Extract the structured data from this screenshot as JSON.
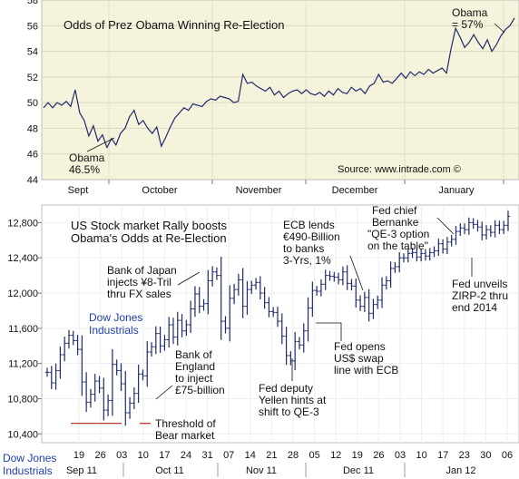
{
  "chart_data": [
    {
      "type": "line",
      "title": "Odds of Prez Obama Winning Re-Election",
      "source": "Source: www.intrade.com ©",
      "ylim": [
        44,
        58
      ],
      "yticks": [
        "44",
        "46",
        "48",
        "50",
        "52",
        "54",
        "56",
        "58"
      ],
      "months": [
        "Sept",
        "October",
        "November",
        "December",
        "January"
      ],
      "grid": true,
      "annotations": {
        "start": "Obama",
        "start_value": "46.5%",
        "end": "Obama",
        "end_value": "= 57%"
      },
      "series": [
        {
          "color": "#1f2a6b",
          "values": [
            49.6,
            50.0,
            49.6,
            50.0,
            49.8,
            50.1,
            49.7,
            51.0,
            49.2,
            48.6,
            47.4,
            48.2,
            47.0,
            47.5,
            46.5,
            47.2,
            46.7,
            47.6,
            48.0,
            48.9,
            49.4,
            48.3,
            48.6,
            48.0,
            47.6,
            48.1,
            46.6,
            47.3,
            48.1,
            48.8,
            49.2,
            49.6,
            49.4,
            49.9,
            49.8,
            49.7,
            50.1,
            50.3,
            50.2,
            50.5,
            50.4,
            50.3,
            50.0,
            50.1,
            52.2,
            51.5,
            51.6,
            51.3,
            51.1,
            50.9,
            51.2,
            50.6,
            50.9,
            50.4,
            50.7,
            50.9,
            51.0,
            50.7,
            51.0,
            50.7,
            50.6,
            50.8,
            50.5,
            50.9,
            50.6,
            51.1,
            50.8,
            50.7,
            51.2,
            50.9,
            51.1,
            50.7,
            51.3,
            51.5,
            52.2,
            51.6,
            51.7,
            51.5,
            51.9,
            52.3,
            51.9,
            52.4,
            52.1,
            52.4,
            52.2,
            52.6,
            52.3,
            52.5,
            52.7,
            52.3,
            54.2,
            55.8,
            55.1,
            54.3,
            54.7,
            55.3,
            54.7,
            54.2,
            54.9,
            54.0,
            54.5,
            55.2,
            55.7,
            56.0,
            56.6
          ]
        }
      ]
    },
    {
      "type": "ohlc",
      "title": "US Stock market Rally boosts Obama's Odds at Re-Election",
      "series_label": "Dow Jones Industrials",
      "ylim": [
        10300,
        13000
      ],
      "yticks": [
        "10,400",
        "10,800",
        "11,200",
        "11,600",
        "12,000",
        "12,400",
        "12,800"
      ],
      "x_day_labels": [
        "19",
        "26",
        "03",
        "10",
        "17",
        "24",
        "31",
        "07",
        "14",
        "21",
        "28",
        "05",
        "12",
        "19",
        "26",
        "03",
        "10",
        "17",
        "23",
        "30",
        "06"
      ],
      "x_month_labels": [
        "Sep 11",
        "Oct 11",
        "Nov 11",
        "Dec 11",
        "Jan 12"
      ],
      "x_axis_label": "Dow Jones Industrials",
      "threshold": {
        "value": 10520,
        "label": "Threshold of Bear market"
      },
      "annotations": [
        {
          "id": "boj",
          "text": "Bank of Japan injects ¥8-Tril thru FX sales"
        },
        {
          "id": "boe",
          "text": "Bank of England to inject £75-billion"
        },
        {
          "id": "yellen",
          "text": "Fed deputy Yellen hints at shift to QE-3"
        },
        {
          "id": "ecb",
          "text": "ECB lends €490-Billion to banks 3-Yrs, 1%"
        },
        {
          "id": "swap",
          "text": "Fed opens US$ swap line with ECB"
        },
        {
          "id": "bernanke",
          "text": "Fed chief Bernanke \"QE-3 option on the table\""
        },
        {
          "id": "zirp",
          "text": "Fed unveils ZIRP-2 thru end 2014"
        }
      ],
      "closes": [
        11100,
        10980,
        11120,
        11300,
        11430,
        11520,
        11460,
        11360,
        10990,
        10760,
        10850,
        11000,
        10920,
        10670,
        10780,
        11190,
        11120,
        10970,
        10640,
        10750,
        10860,
        11080,
        11060,
        11330,
        11390,
        11540,
        11400,
        11470,
        11640,
        11500,
        11690,
        11570,
        11640,
        11820,
        11990,
        11850,
        11880,
        12140,
        12240,
        12200,
        11680,
        11600,
        11940,
        12040,
        12150,
        11850,
        12040,
        12090,
        12120,
        12000,
        11890,
        11790,
        11780,
        11680,
        11510,
        11290,
        11230,
        11450,
        11410,
        11570,
        11830,
        12030,
        12020,
        12100,
        12200,
        12190,
        12180,
        12150,
        12240,
        12110,
        12080,
        11920,
        11850,
        11950,
        11770,
        11870,
        11920,
        12090,
        12140,
        12280,
        12300,
        12400,
        12400,
        12450,
        12460,
        12410,
        12450,
        12420,
        12460,
        12480,
        12560,
        12500,
        12580,
        12610,
        12700,
        12740,
        12720,
        12800,
        12780,
        12750,
        12660,
        12720,
        12690,
        12770,
        12720,
        12770,
        12870
      ]
    }
  ]
}
